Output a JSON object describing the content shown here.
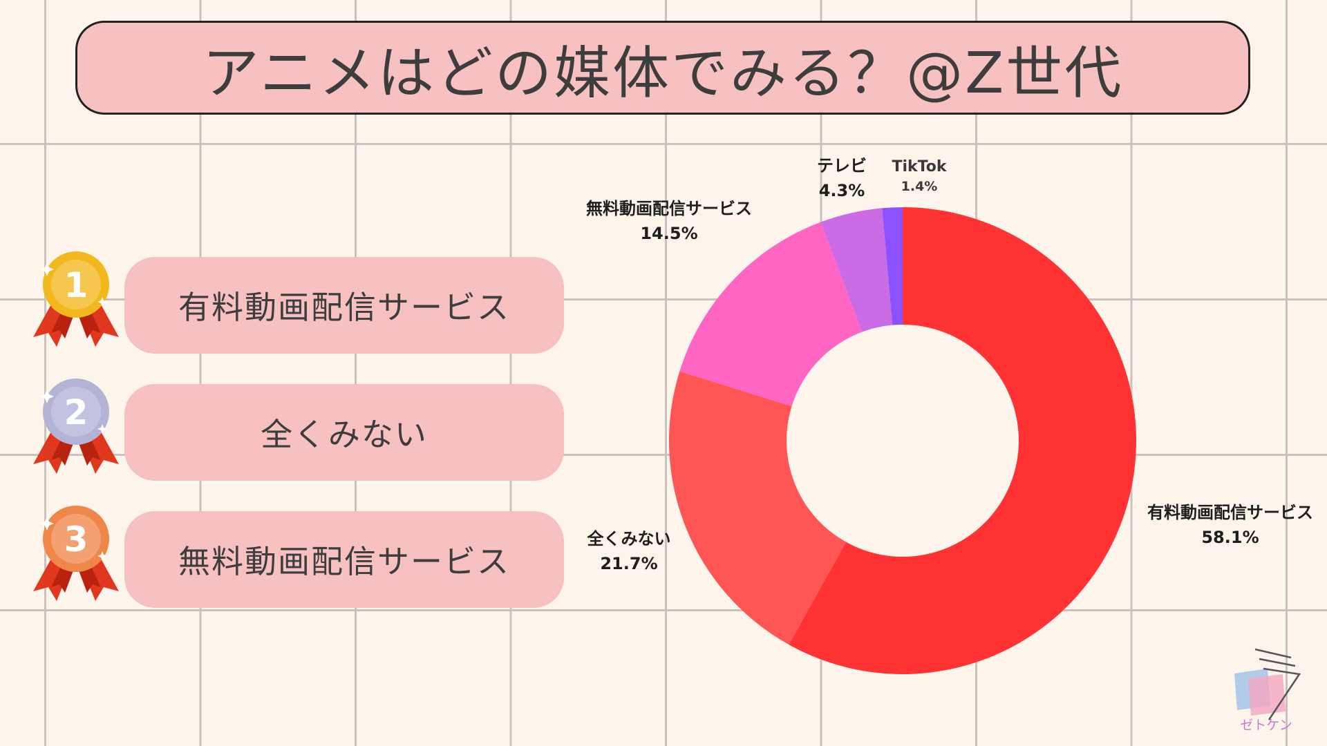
{
  "title": "アニメはどの媒体でみる？@Z世代",
  "ranking": [
    {
      "rank": "1",
      "label": "有料動画配信サービス",
      "medal_color": "#f2b81d"
    },
    {
      "rank": "2",
      "label": "全くみない",
      "medal_color": "#b3b3d6"
    },
    {
      "rank": "3",
      "label": "無料動画配信サービス",
      "medal_color": "#f0874a"
    }
  ],
  "chart_data": {
    "type": "pie",
    "style": "donut",
    "categories": [
      "有料動画配信サービス",
      "全くみない",
      "無料動画配信サービス",
      "テレビ",
      "TikTok"
    ],
    "values": [
      58.1,
      21.7,
      14.5,
      4.3,
      1.4
    ],
    "value_labels": [
      "58.1%",
      "21.7%",
      "14.5%",
      "4.3%",
      "1.4%"
    ],
    "colors": [
      "#ff3333",
      "#ff5555",
      "#ff66c4",
      "#cb6ce6",
      "#8c52ff"
    ]
  },
  "logo": {
    "text": "ゼトケン"
  }
}
